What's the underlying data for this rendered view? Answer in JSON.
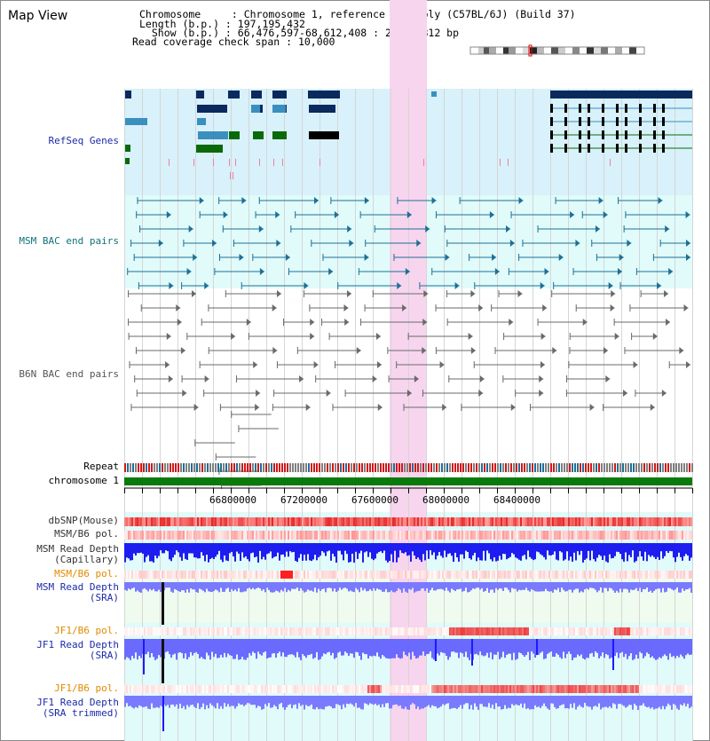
{
  "page": {
    "title": "Map View"
  },
  "info": {
    "chromosome_key": "Chromosome     : ",
    "chromosome_value": "Chromosome 1, reference assembly (C57BL/6J) (Build 37)",
    "length_key": "Length (b.p.) : ",
    "length_value": "197,195,432",
    "show_key": "  Show (b.p.) : ",
    "show_value": "66,476,597-68,612,408 : 2,135,812 bp",
    "coverage_key": "Read coverage check span : ",
    "coverage_value": "10,000"
  },
  "labels": {
    "refseq": "RefSeq Genes",
    "msm_bac": "MSM BAC end pairs",
    "b6n_bac": "B6N BAC end pairs",
    "repeat": "Repeat",
    "chromosome": "chromosome 1",
    "dbsnp": "dbSNP(Mouse)",
    "msm_b6_pol": "MSM/B6 pol.",
    "msm_depth_cap_1": "MSM Read Depth",
    "msm_depth_cap_2": "(Capillary)",
    "msm_b6_pol_orange": "MSM/B6 pol.",
    "msm_depth_sra_1": "MSM Read Depth",
    "msm_depth_sra_2": "(SRA)",
    "jf1_b6_pol": "JF1/B6 pol.",
    "jf1_depth_sra_1": "JF1 Read Depth",
    "jf1_depth_sra_2": "(SRA)",
    "jf1_b6_pol_2": "JF1/B6 pol.",
    "jf1_depth_trim_1": "JF1 Read Depth",
    "jf1_depth_trim_2": "(SRA trimmed)"
  },
  "axis": {
    "ticks": [
      "66800000",
      "67200000",
      "67600000",
      "68000000",
      "68400000"
    ],
    "range_bp": [
      66476597,
      68612408
    ]
  },
  "colors": {
    "refseq_bg": "#d8f1fa",
    "bac_bg": "#e0fbfa",
    "highlight": "#f7d5ee",
    "gene_dark": "#0a2a5e",
    "gene_mid": "#3a8fbf",
    "gene_green": "#0a6a0a",
    "msm_bac": "#1f6f95",
    "b6n_bac": "#6a6a6a",
    "chromosome_bar": "#0a7a0a",
    "depth_blue": "#2a2aff",
    "pol_red": "#ff3030"
  }
}
